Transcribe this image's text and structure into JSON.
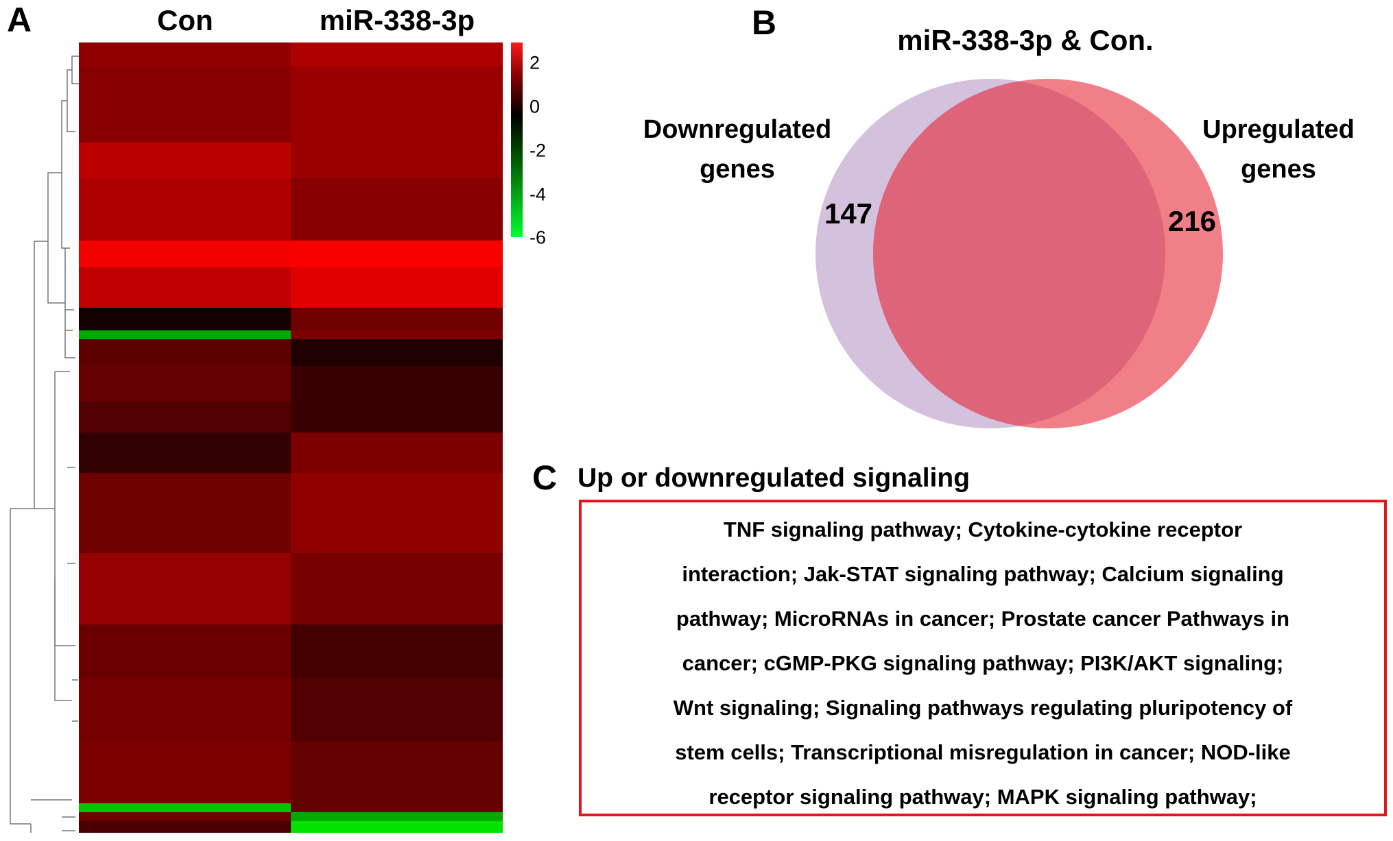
{
  "panel_a": {
    "letter": "A",
    "columns": [
      "Con",
      "miR-338-3p"
    ],
    "colorbar_ticks": [
      "2",
      "0",
      "-2",
      "-4",
      "-6"
    ]
  },
  "panel_b": {
    "letter": "B",
    "title": "miR-338-3p & Con.",
    "left_label": [
      "Downregulated",
      "genes"
    ],
    "right_label": [
      "Upregulated",
      "genes"
    ],
    "left_count": "147",
    "right_count": "216",
    "colors": {
      "left": "#d4c1dd",
      "right": "#f07f88",
      "overlap": "#dd6479"
    }
  },
  "panel_c": {
    "letter": "C",
    "heading": "Up or downregulated signaling",
    "lines": [
      "TNF signaling pathway; Cytokine-cytokine receptor",
      "interaction; Jak-STAT signaling pathway; Calcium signaling",
      "pathway; MicroRNAs in cancer; Prostate cancer Pathways in",
      "cancer; cGMP-PKG signaling pathway; PI3K/AKT signaling;",
      "Wnt signaling; Signaling pathways regulating pluripotency of",
      "stem cells; Transcriptional misregulation in cancer; NOD-like",
      "receptor signaling pathway; MAPK signaling pathway;"
    ],
    "border_color": "#e8141c"
  },
  "chart_data": {
    "type": "heatmap",
    "title": "",
    "columns": [
      "Con",
      "miR-338-3p"
    ],
    "color_scale": {
      "min": -6,
      "max": 2.5,
      "ticks": [
        2,
        0,
        -2,
        -4,
        -6
      ],
      "colors": [
        "#00ff00",
        "#000000",
        "#ff0000"
      ]
    },
    "row_blocks": [
      {
        "n": 27,
        "values": [
          0.8,
          1.3
        ]
      },
      {
        "n": 85,
        "values": [
          0.7,
          1.0
        ]
      },
      {
        "n": 40,
        "values": [
          1.5,
          1.0
        ]
      },
      {
        "n": 70,
        "values": [
          1.3,
          0.7
        ]
      },
      {
        "n": 30,
        "values": [
          2.4,
          2.5
        ]
      },
      {
        "n": 45,
        "values": [
          1.6,
          2.1
        ]
      },
      {
        "n": 25,
        "values": [
          -1.2,
          0.3
        ]
      },
      {
        "n": 10,
        "values": [
          -4.5,
          0.5
        ]
      },
      {
        "n": 30,
        "values": [
          0.0,
          -1.0
        ]
      },
      {
        "n": 40,
        "values": [
          0.1,
          -0.6
        ]
      },
      {
        "n": 35,
        "values": [
          -0.2,
          -0.6
        ]
      },
      {
        "n": 45,
        "values": [
          -0.7,
          0.5
        ]
      },
      {
        "n": 90,
        "values": [
          0.3,
          0.8
        ]
      },
      {
        "n": 80,
        "values": [
          0.9,
          0.4
        ]
      },
      {
        "n": 60,
        "values": [
          0.2,
          -0.4
        ]
      },
      {
        "n": 70,
        "values": [
          0.4,
          -0.2
        ]
      },
      {
        "n": 70,
        "values": [
          0.5,
          0.1
        ]
      },
      {
        "n": 10,
        "values": [
          -5.0,
          0.1
        ]
      },
      {
        "n": 10,
        "values": [
          0.3,
          -4.5
        ]
      },
      {
        "n": 13,
        "values": [
          -0.3,
          -5.5
        ]
      }
    ]
  }
}
